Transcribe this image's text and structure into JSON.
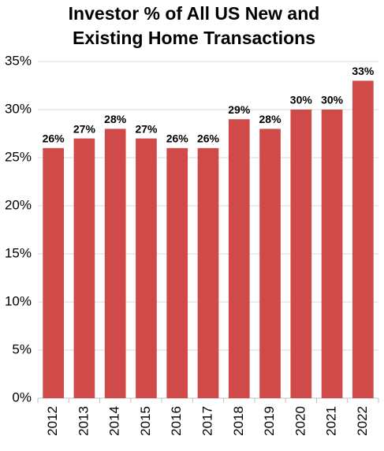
{
  "chart_data": {
    "type": "bar",
    "title": [
      "Investor % of All US New and",
      "Existing Home Transactions"
    ],
    "categories": [
      "2012",
      "2013",
      "2014",
      "2015",
      "2016",
      "2017",
      "2018",
      "2019",
      "2020",
      "2021",
      "2022"
    ],
    "values": [
      26,
      27,
      28,
      27,
      26,
      26,
      29,
      28,
      30,
      30,
      33
    ],
    "value_labels": [
      "26%",
      "27%",
      "28%",
      "27%",
      "26%",
      "26%",
      "29%",
      "28%",
      "30%",
      "30%",
      "33%"
    ],
    "color": "#d04a4a",
    "ylim": [
      0,
      35
    ],
    "yticks": [
      {
        "value": 0,
        "label": "0%"
      },
      {
        "value": 5,
        "label": "5%"
      },
      {
        "value": 10,
        "label": "10%"
      },
      {
        "value": 15,
        "label": "15%"
      },
      {
        "value": 20,
        "label": "20%"
      },
      {
        "value": 25,
        "label": "25%"
      },
      {
        "value": 30,
        "label": "30%"
      },
      {
        "value": 35,
        "label": "35%"
      }
    ],
    "grid": true
  }
}
